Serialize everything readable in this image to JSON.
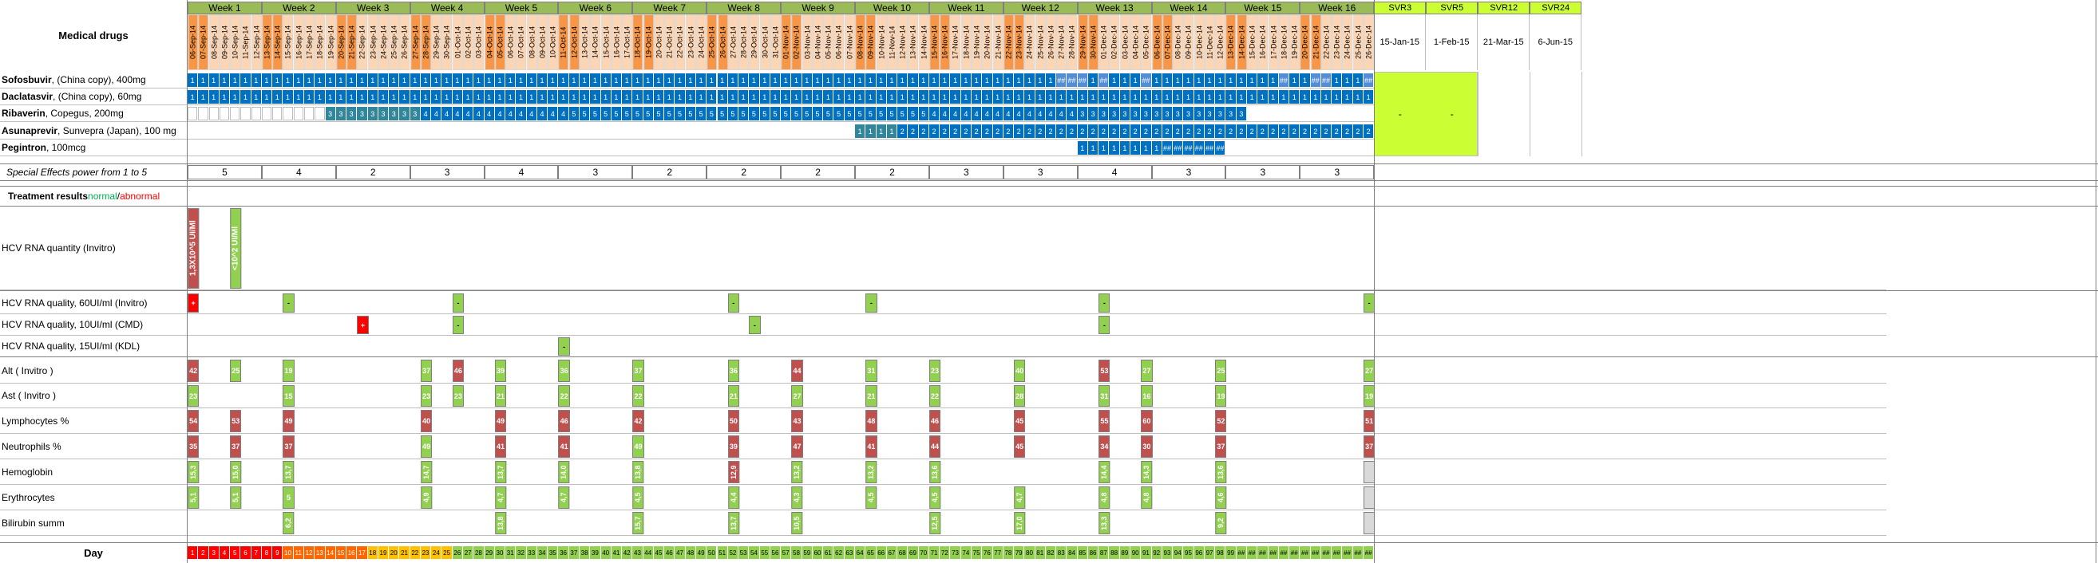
{
  "sheet_title": "Medical drugs",
  "weeks": [
    "Week 1",
    "Week 2",
    "Week 3",
    "Week 4",
    "Week 5",
    "Week 6",
    "Week 7",
    "Week 8",
    "Week 9",
    "Week 10",
    "Week 11",
    "Week 12",
    "Week 13",
    "Week 14",
    "Week 15",
    "Week 16"
  ],
  "dates": [
    "06-Sep-14",
    "07-Sep-14",
    "08-Sep-14",
    "09-Sep-14",
    "10-Sep-14",
    "11-Sep-14",
    "12-Sep-14",
    "13-Sep-14",
    "14-Sep-14",
    "15-Sep-14",
    "16-Sep-14",
    "17-Sep-14",
    "18-Sep-14",
    "19-Sep-14",
    "20-Sep-14",
    "21-Sep-14",
    "22-Sep-14",
    "23-Sep-14",
    "24-Sep-14",
    "25-Sep-14",
    "26-Sep-14",
    "27-Sep-14",
    "28-Sep-14",
    "29-Sep-14",
    "30-Sep-14",
    "01-Oct-14",
    "02-Oct-14",
    "03-Oct-14",
    "04-Oct-14",
    "05-Oct-14",
    "06-Oct-14",
    "07-Oct-14",
    "08-Oct-14",
    "09-Oct-14",
    "10-Oct-14",
    "11-Oct-14",
    "12-Oct-14",
    "13-Oct-14",
    "14-Oct-14",
    "15-Oct-14",
    "16-Oct-14",
    "17-Oct-14",
    "18-Oct-14",
    "19-Oct-14",
    "20-Oct-14",
    "21-Oct-14",
    "22-Oct-14",
    "23-Oct-14",
    "24-Oct-14",
    "25-Oct-14",
    "26-Oct-14",
    "27-Oct-14",
    "28-Oct-14",
    "29-Oct-14",
    "30-Oct-14",
    "31-Oct-14",
    "01-Nov-14",
    "02-Nov-14",
    "03-Nov-14",
    "04-Nov-14",
    "05-Nov-14",
    "06-Nov-14",
    "07-Nov-14",
    "08-Nov-14",
    "09-Nov-14",
    "10-Nov-14",
    "11-Nov-14",
    "12-Nov-14",
    "13-Nov-14",
    "14-Nov-14",
    "15-Nov-14",
    "16-Nov-14",
    "17-Nov-14",
    "18-Nov-14",
    "19-Nov-14",
    "20-Nov-14",
    "21-Nov-14",
    "22-Nov-14",
    "23-Nov-14",
    "24-Nov-14",
    "25-Nov-14",
    "26-Nov-14",
    "27-Nov-14",
    "28-Nov-14",
    "29-Nov-14",
    "30-Nov-14",
    "01-Dec-14",
    "02-Dec-14",
    "03-Dec-14",
    "04-Dec-14",
    "05-Dec-14",
    "06-Dec-14",
    "07-Dec-14",
    "08-Dec-14",
    "09-Dec-14",
    "10-Dec-14",
    "11-Dec-14",
    "12-Dec-14",
    "13-Dec-14",
    "14-Dec-14",
    "15-Dec-14",
    "16-Dec-14",
    "17-Dec-14",
    "18-Dec-14",
    "19-Dec-14",
    "20-Dec-14",
    "21-Dec-14",
    "22-Dec-14",
    "23-Dec-14",
    "24-Dec-14",
    "25-Dec-14",
    "26-Dec-14"
  ],
  "svr": [
    {
      "label": "SVR3",
      "date": "15-Jan-15"
    },
    {
      "label": "SVR5",
      "date": "1-Feb-15"
    },
    {
      "label": "SVR12",
      "date": "21-Mar-15"
    },
    {
      "label": "SVR24",
      "date": "6-Jun-15"
    }
  ],
  "svr_marks": [
    "-",
    "-"
  ],
  "drugs": [
    {
      "name": "Sofosbuvir",
      "detail": ", (China copy), 400mg",
      "mark": "1",
      "alt_mark": "##",
      "alt_days": [
        83,
        84,
        85,
        87,
        91,
        104,
        107,
        108,
        112
      ],
      "start": 1,
      "end": 112
    },
    {
      "name": "Daclatasvir",
      "detail": ", (China copy), 60mg",
      "mark": "1",
      "start": 1,
      "end": 112
    },
    {
      "name": "Ribaverin",
      "detail": ", Copegus, 200mg",
      "segments": [
        {
          "from": 1,
          "to": 13,
          "v": ""
        },
        {
          "from": 14,
          "to": 22,
          "v": "3"
        },
        {
          "from": 23,
          "to": 36,
          "v": "4"
        },
        {
          "from": 37,
          "to": 70,
          "v": "5"
        },
        {
          "from": 71,
          "to": 84,
          "v": "4"
        },
        {
          "from": 85,
          "to": 100,
          "v": "3"
        }
      ]
    },
    {
      "name": "Asunaprevir",
      "detail": ", Sunvepra (Japan), 100 mg",
      "segments": [
        {
          "from": 64,
          "to": 67,
          "v": "1"
        },
        {
          "from": 68,
          "to": 84,
          "v": "2"
        },
        {
          "from": 85,
          "to": 112,
          "v": "2"
        }
      ]
    },
    {
      "name": "Pegintron",
      "detail": ", 100mcg",
      "segments": [
        {
          "from": 85,
          "to": 92,
          "v": "1"
        },
        {
          "from": 93,
          "to": 98,
          "v": "##"
        }
      ]
    }
  ],
  "effects": {
    "label": "Special Effects power from 1 to 5",
    "values": [
      "5",
      "4",
      "2",
      "3",
      "4",
      "3",
      "2",
      "2",
      "2",
      "2",
      "3",
      "3",
      "4",
      "3",
      "3",
      "3"
    ]
  },
  "treatment": {
    "label": "Treatment results ",
    "normal": "normal",
    "sep": "/",
    "abnormal": "abnormal"
  },
  "rows": [
    {
      "label": "HCV RNA quantity (Invitro)"
    },
    {
      "label": "HCV RNA quality, 60UI/ml (Invitro)"
    },
    {
      "label": "HCV RNA quality, 10UI/ml (CMD)"
    },
    {
      "label": "HCV RNA quality, 15UI/ml (KDL)"
    },
    {
      "label": "Alt ( Invitro )"
    },
    {
      "label": "Ast  ( Invitro )"
    },
    {
      "label": "Lymphocytes %"
    },
    {
      "label": "Neutrophils %"
    },
    {
      "label": "Hemoglobin"
    },
    {
      "label": "Erythrocytes"
    },
    {
      "label": "Bilirubin summ"
    }
  ],
  "results": {
    "rna_quantity": [
      {
        "day": 1,
        "v": "1,3X10^5 UI/Ml",
        "bad": true
      },
      {
        "day": 5,
        "v": "<10^2 UI/Ml",
        "bad": false
      }
    ],
    "rna60": [
      {
        "day": 1,
        "v": "+",
        "bad": true
      },
      {
        "day": 10,
        "v": "-"
      },
      {
        "day": 26,
        "v": "-"
      },
      {
        "day": 52,
        "v": "-"
      },
      {
        "day": 65,
        "v": "-"
      },
      {
        "day": 87,
        "v": "-"
      },
      {
        "day": 112,
        "v": "-"
      }
    ],
    "rna10": [
      {
        "day": 17,
        "v": "+",
        "bad": true
      },
      {
        "day": 26,
        "v": "-"
      },
      {
        "day": 54,
        "v": "-"
      },
      {
        "day": 87,
        "v": "-"
      }
    ],
    "rna15": [
      {
        "day": 36,
        "v": "-"
      }
    ],
    "alt": [
      {
        "day": 1,
        "v": "42",
        "bad": true
      },
      {
        "day": 5,
        "v": "25"
      },
      {
        "day": 10,
        "v": "19"
      },
      {
        "day": 23,
        "v": "37"
      },
      {
        "day": 26,
        "v": "46",
        "bad": true
      },
      {
        "day": 30,
        "v": "39"
      },
      {
        "day": 36,
        "v": "36"
      },
      {
        "day": 43,
        "v": "37"
      },
      {
        "day": 52,
        "v": "36"
      },
      {
        "day": 58,
        "v": "44",
        "bad": true
      },
      {
        "day": 65,
        "v": "31"
      },
      {
        "day": 71,
        "v": "23"
      },
      {
        "day": 79,
        "v": "40"
      },
      {
        "day": 87,
        "v": "53",
        "bad": true
      },
      {
        "day": 91,
        "v": "27"
      },
      {
        "day": 98,
        "v": "25"
      },
      {
        "day": 112,
        "v": "27"
      }
    ],
    "ast": [
      {
        "day": 1,
        "v": "23"
      },
      {
        "day": 10,
        "v": "15"
      },
      {
        "day": 23,
        "v": "23"
      },
      {
        "day": 26,
        "v": "23"
      },
      {
        "day": 30,
        "v": "21"
      },
      {
        "day": 36,
        "v": "22"
      },
      {
        "day": 43,
        "v": "22"
      },
      {
        "day": 52,
        "v": "21"
      },
      {
        "day": 58,
        "v": "27"
      },
      {
        "day": 65,
        "v": "21"
      },
      {
        "day": 71,
        "v": "22"
      },
      {
        "day": 79,
        "v": "28"
      },
      {
        "day": 87,
        "v": "31"
      },
      {
        "day": 91,
        "v": "16"
      },
      {
        "day": 98,
        "v": "19"
      },
      {
        "day": 112,
        "v": "19"
      }
    ],
    "lymph": [
      {
        "day": 1,
        "v": "54",
        "bad": true
      },
      {
        "day": 5,
        "v": "53",
        "bad": true
      },
      {
        "day": 10,
        "v": "49",
        "bad": true
      },
      {
        "day": 23,
        "v": "40",
        "bad": true
      },
      {
        "day": 30,
        "v": "49",
        "bad": true
      },
      {
        "day": 36,
        "v": "46",
        "bad": true
      },
      {
        "day": 43,
        "v": "42",
        "bad": true
      },
      {
        "day": 52,
        "v": "50",
        "bad": true
      },
      {
        "day": 58,
        "v": "43",
        "bad": true
      },
      {
        "day": 65,
        "v": "48",
        "bad": true
      },
      {
        "day": 71,
        "v": "46",
        "bad": true
      },
      {
        "day": 79,
        "v": "45",
        "bad": true
      },
      {
        "day": 87,
        "v": "55",
        "bad": true
      },
      {
        "day": 91,
        "v": "60",
        "bad": true
      },
      {
        "day": 98,
        "v": "52",
        "bad": true
      },
      {
        "day": 112,
        "v": "51",
        "bad": true
      }
    ],
    "neutro": [
      {
        "day": 1,
        "v": "35",
        "bad": true
      },
      {
        "day": 5,
        "v": "37",
        "bad": true
      },
      {
        "day": 10,
        "v": "37",
        "bad": true
      },
      {
        "day": 23,
        "v": "49"
      },
      {
        "day": 30,
        "v": "41",
        "bad": true
      },
      {
        "day": 36,
        "v": "41",
        "bad": true
      },
      {
        "day": 43,
        "v": "49"
      },
      {
        "day": 52,
        "v": "39",
        "bad": true
      },
      {
        "day": 58,
        "v": "47",
        "bad": true
      },
      {
        "day": 65,
        "v": "41",
        "bad": true
      },
      {
        "day": 71,
        "v": "44",
        "bad": true
      },
      {
        "day": 79,
        "v": "45",
        "bad": true
      },
      {
        "day": 87,
        "v": "34",
        "bad": true
      },
      {
        "day": 91,
        "v": "30",
        "bad": true
      },
      {
        "day": 98,
        "v": "37",
        "bad": true
      },
      {
        "day": 112,
        "v": "37",
        "bad": true
      }
    ],
    "hemo": [
      {
        "day": 1,
        "v": "15,3"
      },
      {
        "day": 5,
        "v": "15,0"
      },
      {
        "day": 10,
        "v": "13,7"
      },
      {
        "day": 23,
        "v": "14,7"
      },
      {
        "day": 30,
        "v": "13,7"
      },
      {
        "day": 36,
        "v": "14,0"
      },
      {
        "day": 43,
        "v": "13,8"
      },
      {
        "day": 52,
        "v": "12,9",
        "bad": true
      },
      {
        "day": 58,
        "v": "13,2"
      },
      {
        "day": 65,
        "v": "13,2"
      },
      {
        "day": 71,
        "v": "13,6"
      },
      {
        "day": 87,
        "v": "14,4"
      },
      {
        "day": 91,
        "v": "14,3"
      },
      {
        "day": 98,
        "v": "13,6"
      },
      {
        "day": 112,
        "v": "",
        "grey": true
      }
    ],
    "ery": [
      {
        "day": 1,
        "v": "5,1"
      },
      {
        "day": 5,
        "v": "5,1"
      },
      {
        "day": 10,
        "v": "5"
      },
      {
        "day": 23,
        "v": "4,9"
      },
      {
        "day": 30,
        "v": "4,7"
      },
      {
        "day": 36,
        "v": "4,7"
      },
      {
        "day": 43,
        "v": "4,5"
      },
      {
        "day": 52,
        "v": "4,4"
      },
      {
        "day": 58,
        "v": "4,3"
      },
      {
        "day": 65,
        "v": "4,5"
      },
      {
        "day": 71,
        "v": "4,5"
      },
      {
        "day": 79,
        "v": "4,7"
      },
      {
        "day": 87,
        "v": "4,8"
      },
      {
        "day": 91,
        "v": "4,8"
      },
      {
        "day": 98,
        "v": "4,6"
      },
      {
        "day": 112,
        "v": "",
        "grey": true
      }
    ],
    "bili": [
      {
        "day": 10,
        "v": "6,2"
      },
      {
        "day": 30,
        "v": "13,8"
      },
      {
        "day": 43,
        "v": "15,7"
      },
      {
        "day": 52,
        "v": "13,7"
      },
      {
        "day": 58,
        "v": "10,5"
      },
      {
        "day": 71,
        "v": "12,5"
      },
      {
        "day": 79,
        "v": "17,0"
      },
      {
        "day": 87,
        "v": "13,3"
      },
      {
        "day": 98,
        "v": "9,2"
      },
      {
        "day": 112,
        "v": "",
        "grey": true
      }
    ]
  },
  "day_label": "Day",
  "day_overflow": "##",
  "colors": {
    "week_green": "#9bbb59",
    "weekend_orange": "#f79646",
    "weekday_peach": "#fcd5b4",
    "drug_blue": "#0070c0",
    "drug_teal": "#31869b",
    "svr_lime": "#ccff33",
    "good_green": "#92d050",
    "bad_red": "#c0504d",
    "plus_red": "#ff0000"
  }
}
